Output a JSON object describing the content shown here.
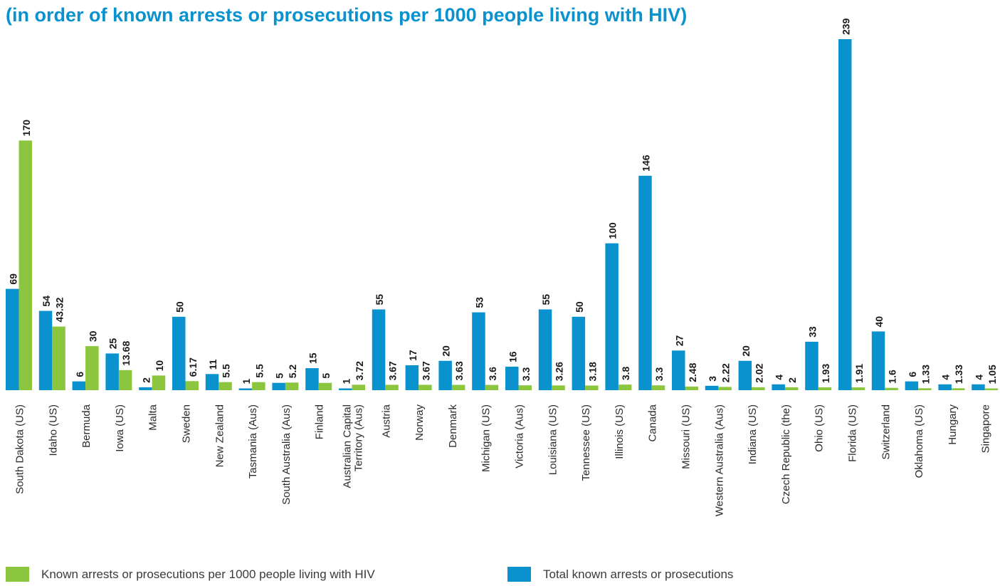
{
  "title": "(in order of known arrests or prosecutions per 1000 people living with HIV)",
  "colors": {
    "total": "#0a92cf",
    "rate": "#8cc63e"
  },
  "legend": {
    "rate_label": "Known arrests or prosecutions per 1000 people living with HIV",
    "total_label": "Total known arrests or prosecutions"
  },
  "chart_data": {
    "type": "bar",
    "title": "(in order of known arrests or prosecutions per 1000 people living with HIV)",
    "xlabel": "",
    "ylabel": "",
    "grid": false,
    "legend_position": "bottom",
    "categories": [
      "South Dakota (US)",
      "Idaho (US)",
      "Bermuda",
      "Iowa (US)",
      "Malta",
      "Sweden",
      "New Zealand",
      "Tasmania (Aus)",
      "South Australia (Aus)",
      "Finland",
      "Australian Capital Territory (Aus)",
      "Austria",
      "Norway",
      "Denmark",
      "Michigan (US)",
      "Victoria (Aus)",
      "Louisiana (US)",
      "Tennessee (US)",
      "Illinois (US)",
      "Canada",
      "Missouri (US)",
      "Western Australia (Aus)",
      "Indiana (US)",
      "Czech Republic (the)",
      "Ohio (US)",
      "Florida (US)",
      "Switzerland",
      "Oklahoma (US)",
      "Hungary",
      "Singapore"
    ],
    "category_lines": [
      [
        "South Dakota (US)"
      ],
      [
        "Idaho (US)"
      ],
      [
        "Bermuda"
      ],
      [
        "Iowa (US)"
      ],
      [
        "Malta"
      ],
      [
        "Sweden"
      ],
      [
        "New Zealand"
      ],
      [
        "Tasmania (Aus)"
      ],
      [
        "South Australia (Aus)"
      ],
      [
        "Finland"
      ],
      [
        "Australian Capital",
        "Territory (Aus)"
      ],
      [
        "Austria"
      ],
      [
        "Norway"
      ],
      [
        "Denmark"
      ],
      [
        "Michigan (US)"
      ],
      [
        "Victoria (Aus)"
      ],
      [
        "Louisiana (US)"
      ],
      [
        "Tennessee (US)"
      ],
      [
        "Illinois (US)"
      ],
      [
        "Canada"
      ],
      [
        "Missouri (US)"
      ],
      [
        "Western Australia (Aus)"
      ],
      [
        "Indiana (US)"
      ],
      [
        "Czech Republic (the)"
      ],
      [
        "Ohio (US)"
      ],
      [
        "Florida (US)"
      ],
      [
        "Switzerland"
      ],
      [
        "Oklahoma (US)"
      ],
      [
        "Hungary"
      ],
      [
        "Singapore"
      ]
    ],
    "series": [
      {
        "name": "Total known arrests or prosecutions",
        "color": "#0a92cf",
        "values": [
          69,
          54,
          6,
          25,
          2,
          50,
          11,
          1,
          5,
          15,
          1,
          55,
          17,
          20,
          53,
          16,
          55,
          50,
          100,
          146,
          27,
          3,
          20,
          4,
          33,
          239,
          40,
          6,
          4,
          4
        ],
        "labels": [
          "69",
          "54",
          "6",
          "25",
          "2",
          "50",
          "11",
          "1",
          "5",
          "15",
          "1",
          "55",
          "17",
          "20",
          "53",
          "16",
          "55",
          "50",
          "100",
          "146",
          "27",
          "3",
          "20",
          "4",
          "33",
          "239",
          "40",
          "6",
          "4",
          "4"
        ]
      },
      {
        "name": "Known arrests or prosecutions per 1000 people living with HIV",
        "color": "#8cc63e",
        "values": [
          170,
          43.32,
          30,
          13.68,
          10,
          6.17,
          5.5,
          5.5,
          5.2,
          5,
          3.72,
          3.67,
          3.67,
          3.63,
          3.6,
          3.3,
          3.26,
          3.18,
          3.8,
          3.3,
          2.48,
          2.22,
          2.02,
          2,
          1.93,
          1.91,
          1.6,
          1.33,
          1.33,
          1.05
        ],
        "labels": [
          "170",
          "43.32",
          "30",
          "13.68",
          "10",
          "6.17",
          "5.5",
          "5.5",
          "5.2",
          "5",
          "3.72",
          "3.67",
          "3.67",
          "3.63",
          "3.6",
          "3.3",
          "3.26",
          "3.18",
          "3.8",
          "3.3",
          "2.48",
          "2.22",
          "2.02",
          "2",
          "1.93",
          "1.91",
          "1.6",
          "1.33",
          "1.33",
          "1.05"
        ]
      }
    ],
    "ylim": [
      0,
      239
    ]
  }
}
